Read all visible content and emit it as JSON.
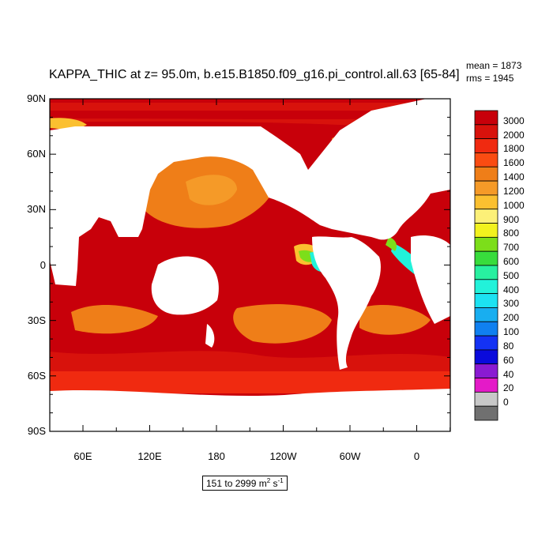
{
  "title": "KAPPA_THIC at z=  95.0m, b.e15.B1850.f09_g16.pi_control.all.63 [65-84]",
  "stats": {
    "mean": "mean = 1873",
    "rms": "rms = 1945"
  },
  "colors": {
    "land": "#ffffff",
    "frame": "#000000"
  },
  "axes": {
    "y_ticks": [
      "90N",
      "60N",
      "30N",
      "0",
      "30S",
      "60S",
      "90S"
    ],
    "x_ticks": [
      "60E",
      "120E",
      "180",
      "120W",
      "60W",
      "0"
    ]
  },
  "colorbar": {
    "labels": [
      "3000",
      "2000",
      "1800",
      "1600",
      "1400",
      "1200",
      "1000",
      "900",
      "800",
      "700",
      "600",
      "500",
      "400",
      "300",
      "200",
      "100",
      "80",
      "60",
      "40",
      "20",
      "0"
    ],
    "colors": [
      "#c8000a",
      "#d8120c",
      "#f02a10",
      "#fa4c12",
      "#ef7e18",
      "#f59a28",
      "#fbc030",
      "#fcf078",
      "#f2f21e",
      "#7cde1a",
      "#38dc3c",
      "#28f0a0",
      "#22f2da",
      "#1ce2f2",
      "#18aef0",
      "#1080f0",
      "#1432f4",
      "#0a0adc",
      "#8a1ad2",
      "#e41ac8",
      "#c8c8c8",
      "#707070"
    ]
  },
  "range_label": {
    "text": "151 to 2999 m",
    "exp1": "2",
    "mid": " s",
    "exp2": "-1"
  }
}
